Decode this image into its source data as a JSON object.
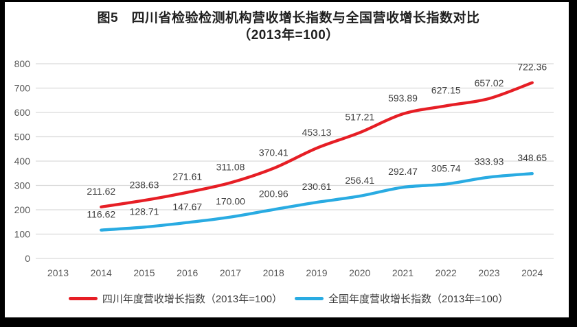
{
  "title": {
    "line1": "图5　四川省检验检测机构营收增长指数与全国营收增长指数对比",
    "line2": "（2013年=100）"
  },
  "legend": {
    "items": [
      {
        "label": "四川年度营收增长指数（2013年=100）",
        "color": "#e61e25"
      },
      {
        "label": "全国年度营收增长指数（2013年=100）",
        "color": "#29abe2"
      }
    ]
  },
  "chart_data": {
    "type": "line",
    "title": "图5 四川省检验检测机构营收增长指数与全国营收增长指数对比",
    "subtitle": "（2013年=100）",
    "categories": [
      2013,
      2014,
      2015,
      2016,
      2017,
      2018,
      2019,
      2020,
      2021,
      2022,
      2023,
      2024
    ],
    "series": [
      {
        "name": "四川年度营收增长指数（2013年=100）",
        "color": "#e61e25",
        "start_year": 2014,
        "values": [
          211.62,
          238.63,
          271.61,
          311.08,
          370.41,
          453.13,
          517.21,
          593.89,
          627.15,
          657.02,
          722.36
        ]
      },
      {
        "name": "全国年度营收增长指数（2013年=100）",
        "color": "#29abe2",
        "start_year": 2014,
        "values": [
          116.62,
          128.71,
          147.67,
          170.0,
          200.96,
          230.61,
          256.41,
          292.47,
          305.74,
          333.93,
          348.65
        ]
      }
    ],
    "ylim": [
      0,
      800
    ],
    "ytick_interval": 100,
    "y_ticks": [
      0,
      100,
      200,
      300,
      400,
      500,
      600,
      700,
      800
    ],
    "grid": true,
    "legend_position": "bottom",
    "data_labels": true,
    "label_decimals": 2
  },
  "colors": {
    "sichuan_line": "#e61e25",
    "national_line": "#29abe2",
    "gridline": "#d9d9d9",
    "tick_text": "#595959",
    "label_text": "#3f3f3f",
    "title_text": "#1f1f1f",
    "frame": "#000000",
    "background": "#ffffff"
  }
}
